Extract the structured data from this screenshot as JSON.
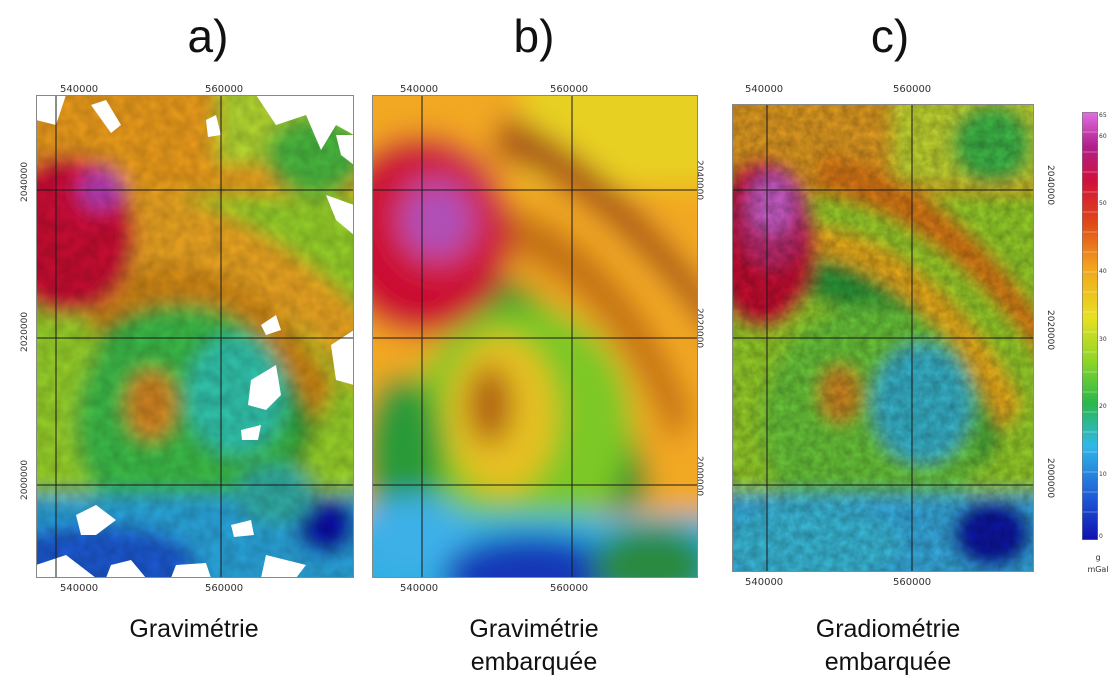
{
  "panels": [
    {
      "letter": "a)",
      "caption_lines": [
        "Gravimétrie"
      ],
      "x_ticks_top": [
        "540000",
        "560000"
      ],
      "x_ticks_bottom": [
        "540000",
        "560000"
      ],
      "y_ticks_left": [
        "2040000",
        "2020000",
        "2000000"
      ]
    },
    {
      "letter": "b)",
      "caption_lines": [
        "Gravimétrie",
        "embarquée"
      ],
      "x_ticks_top": [
        "540000",
        "560000"
      ],
      "x_ticks_bottom": [
        "540000",
        "560000"
      ],
      "y_ticks_right": [
        "2040000",
        "2020000",
        "2000000"
      ]
    },
    {
      "letter": "c)",
      "caption_lines": [
        "Gradiométrie",
        "embarquée"
      ],
      "x_ticks_top": [
        "540000",
        "560000"
      ],
      "x_ticks_bottom": [
        "540000",
        "560000"
      ],
      "y_ticks_right": [
        "2040000",
        "2020000",
        "2000000"
      ]
    }
  ],
  "colorbar": {
    "ticks": [
      "65",
      "60",
      "50",
      "40",
      "30",
      "20",
      "10",
      "0"
    ],
    "unit_symbol": "g",
    "unit": "mGal",
    "colors": [
      "#1010b0",
      "#1e5ad6",
      "#30b8e8",
      "#2ab84a",
      "#8fd628",
      "#e8e020",
      "#f2a21e",
      "#e04818",
      "#d0103c",
      "#b0208c",
      "#e070e0"
    ]
  }
}
